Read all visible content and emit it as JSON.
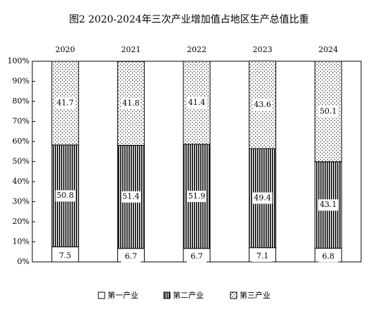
{
  "chart_data": {
    "type": "stacked-bar",
    "title": "图2 2020-2024年三次产业增加值占地区生产总值比重",
    "categories": [
      "2020",
      "2021",
      "2022",
      "2023",
      "2024"
    ],
    "series": [
      {
        "name": "第一产业",
        "color": "#000000",
        "pattern": "none",
        "values": [
          7.5,
          6.7,
          6.7,
          7.1,
          6.8
        ]
      },
      {
        "name": "第二产业",
        "color": "#000000",
        "pattern": "vertical-lines",
        "values": [
          50.8,
          51.4,
          51.9,
          49.4,
          43.1
        ]
      },
      {
        "name": "第三产业",
        "color": "#000000",
        "pattern": "dots",
        "values": [
          41.7,
          41.8,
          41.4,
          43.6,
          50.1
        ]
      }
    ],
    "ylim": [
      0,
      100
    ],
    "yticks": [
      {
        "value": 0,
        "label": "0%"
      },
      {
        "value": 10,
        "label": "10%"
      },
      {
        "value": 20,
        "label": "20%"
      },
      {
        "value": 30,
        "label": "30%"
      },
      {
        "value": 40,
        "label": "40%"
      },
      {
        "value": 50,
        "label": "50%"
      },
      {
        "value": 60,
        "label": "60%"
      },
      {
        "value": 70,
        "label": "70%"
      },
      {
        "value": 80,
        "label": "80%"
      },
      {
        "value": 90,
        "label": "90%"
      },
      {
        "value": 100,
        "label": "100%"
      }
    ],
    "legend": "bottom"
  }
}
